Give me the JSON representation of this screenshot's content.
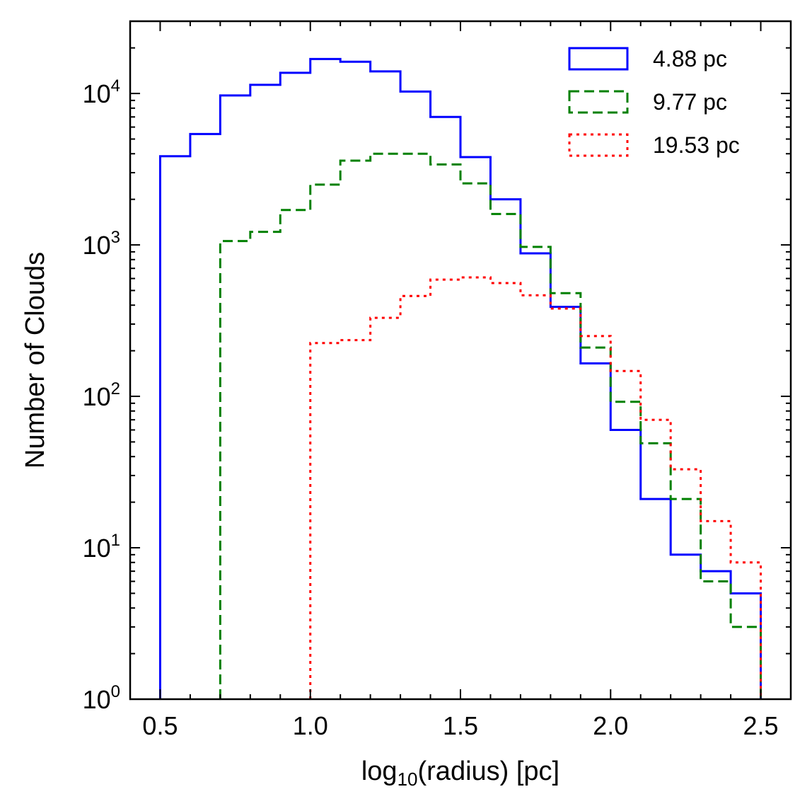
{
  "chart_data": {
    "type": "histogram",
    "title": "",
    "xlabel_main": "log",
    "xlabel_sub": "10",
    "xlabel_rest": "(radius) [pc]",
    "ylabel": "Number of Clouds",
    "xlim": [
      0.4,
      2.6
    ],
    "ylim": [
      1,
      30000
    ],
    "yscale": "log",
    "xticks": [
      "0.5",
      "1.0",
      "1.5",
      "2.0",
      "2.5"
    ],
    "yticks": [
      {
        "base": "10",
        "exp": "0",
        "value": 1
      },
      {
        "base": "10",
        "exp": "1",
        "value": 10
      },
      {
        "base": "10",
        "exp": "2",
        "value": 100
      },
      {
        "base": "10",
        "exp": "3",
        "value": 1000
      },
      {
        "base": "10",
        "exp": "4",
        "value": 10000
      }
    ],
    "legend_position": "top-right",
    "series": [
      {
        "name": "4.88 pc",
        "color": "#0000ff",
        "style": "solid",
        "start": 0.5,
        "bin_width": 0.1,
        "values": [
          3850,
          5400,
          9700,
          11400,
          13700,
          16900,
          16200,
          14000,
          10300,
          7000,
          3800,
          2000,
          880,
          390,
          165,
          60,
          21,
          9,
          7,
          5
        ]
      },
      {
        "name": "9.77 pc",
        "color": "#008000",
        "style": "dashed",
        "start": 0.7,
        "bin_width": 0.1,
        "values": [
          1060,
          1220,
          1700,
          2500,
          3600,
          4000,
          4000,
          3400,
          2550,
          1600,
          970,
          480,
          210,
          92,
          49,
          21,
          6,
          3
        ]
      },
      {
        "name": "19.53 pc",
        "color": "#ff0000",
        "style": "dotted",
        "start": 1.0,
        "bin_width": 0.1,
        "values": [
          225,
          235,
          330,
          460,
          590,
          610,
          560,
          465,
          380,
          250,
          147,
          70,
          33,
          15,
          8
        ]
      }
    ]
  }
}
